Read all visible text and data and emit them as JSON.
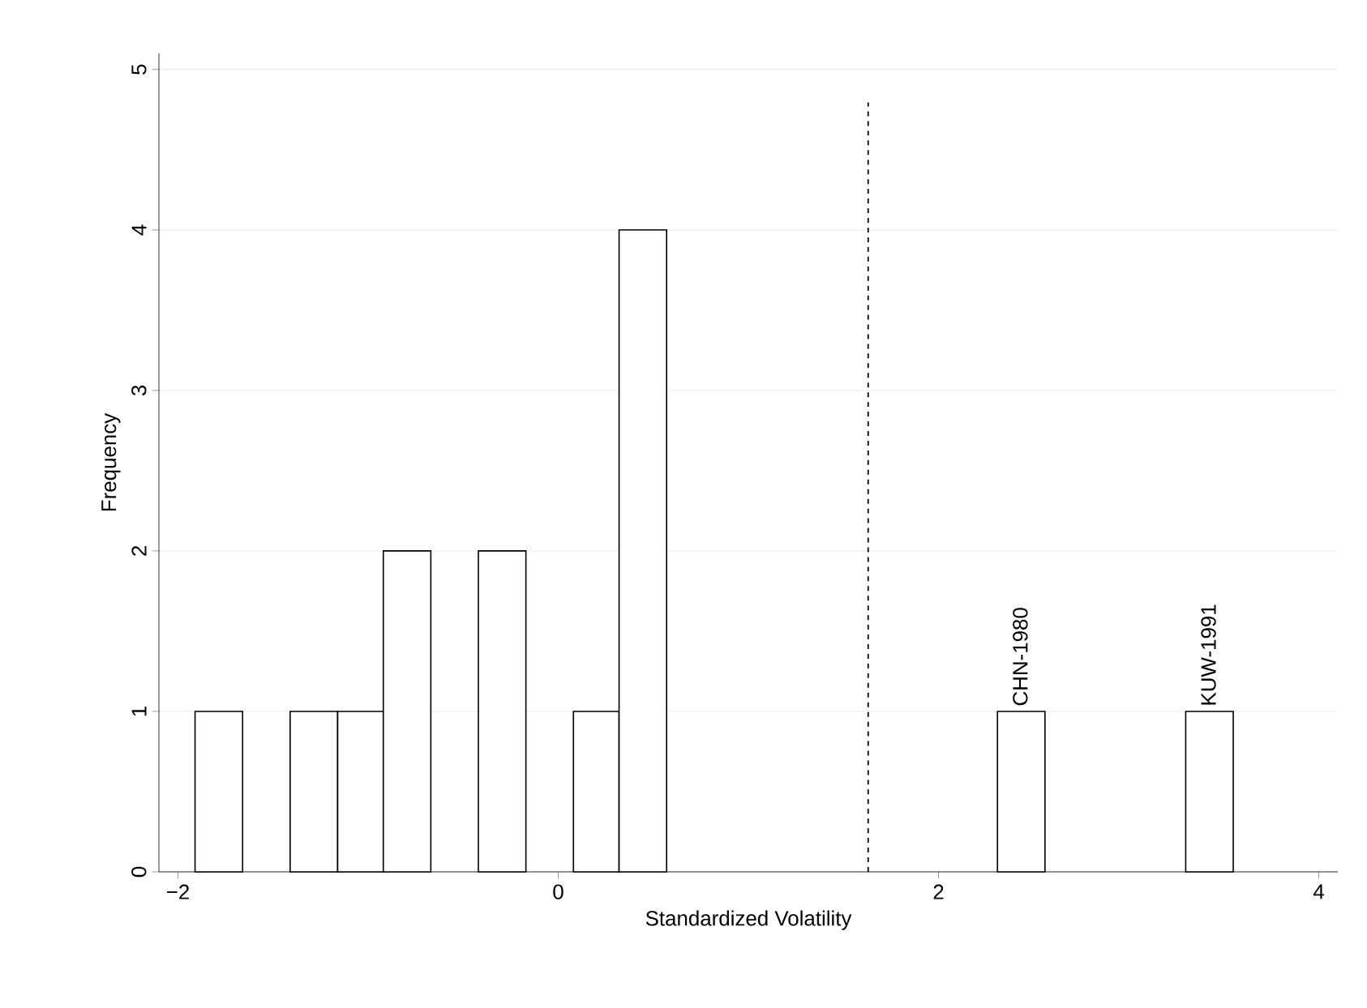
{
  "chart_data": {
    "type": "histogram",
    "xlabel": "Standardized Volatility",
    "ylabel": "Frequency",
    "bins": [
      -1.91,
      -1.66,
      -1.41,
      -1.16,
      -0.92,
      -0.67,
      -0.42,
      -0.17,
      0.08,
      0.32,
      0.57,
      2.31,
      2.56,
      3.3,
      3.55
    ],
    "values": [
      1,
      0,
      1,
      1,
      2,
      0,
      2,
      0,
      1,
      4,
      0,
      1,
      0,
      1
    ],
    "color": "#ffffff",
    "xlim": [
      -2.1,
      4.1
    ],
    "xticks": [
      {
        "value": -2,
        "label": "−2"
      },
      0,
      2,
      4
    ],
    "ylim": [
      0,
      5.1
    ],
    "yticks": [
      0,
      1,
      2,
      3,
      4,
      5
    ],
    "grid": "y",
    "ref_lines": [
      {
        "axis": "x",
        "value": 1.63,
        "line_style": "dashed"
      }
    ],
    "annotations": [
      {
        "text": "CHN-1980",
        "x": 2.43,
        "y": 1
      },
      {
        "text": "KUW-1991",
        "x": 3.42,
        "y": 1
      }
    ]
  }
}
